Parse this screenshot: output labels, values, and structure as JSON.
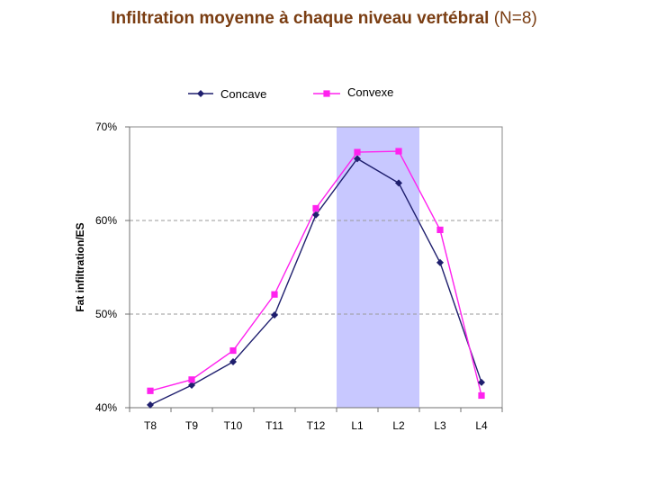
{
  "title": {
    "main": "Infiltration moyenne à chaque niveau vertébral",
    "suffix": "(N=8)"
  },
  "chart_data": {
    "type": "line",
    "categories": [
      "T8",
      "T9",
      "T10",
      "T11",
      "T12",
      "L1",
      "L2",
      "L3",
      "L4"
    ],
    "series": [
      {
        "name": "Concave",
        "values": [
          0.403,
          0.424,
          0.449,
          0.499,
          0.606,
          0.666,
          0.64,
          0.555,
          0.427
        ],
        "color": "#1f1f6e",
        "marker": "diamond"
      },
      {
        "name": "Convexe",
        "values": [
          0.418,
          0.43,
          0.461,
          0.521,
          0.613,
          0.673,
          0.674,
          0.59,
          0.413
        ],
        "color": "#ff22ee",
        "marker": "square"
      }
    ],
    "ylabel": "Fat infiltration/ES",
    "xlabel": "",
    "ylim": [
      0.4,
      0.7
    ],
    "yticks": [
      0.4,
      0.5,
      0.6,
      0.7
    ],
    "ytick_labels": [
      "40%",
      "50%",
      "60%",
      "70%"
    ],
    "grid": "horizontal dashed",
    "highlight": {
      "from": "L1",
      "to": "L2",
      "color": "#c8c8ff"
    },
    "legend_position": "top"
  }
}
